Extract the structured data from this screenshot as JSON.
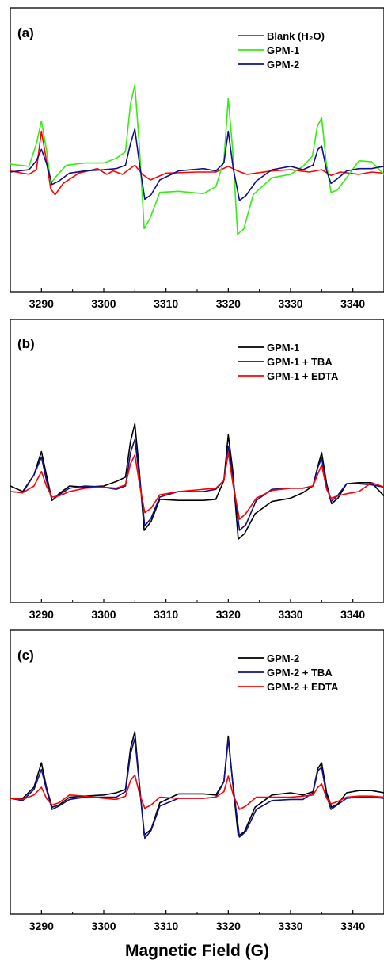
{
  "xlabel": "Magnetic Field (G)",
  "chart_data": [
    {
      "type": "line",
      "panel_label": "(a)",
      "xlim": [
        3285,
        3345
      ],
      "x_ticks": [
        3290,
        3300,
        3310,
        3320,
        3330,
        3340
      ],
      "tick_labels": [
        "3290",
        "3300",
        "3310",
        "3320",
        "3330",
        "3340"
      ],
      "legend_placement": "top-right",
      "series": [
        {
          "name": "Blank (H₂O)",
          "color": "#ff0000",
          "x": [
            3285,
            3288,
            3289.2,
            3290,
            3290.8,
            3291.5,
            3292.2,
            3293.5,
            3296,
            3299,
            3300.5,
            3301.5,
            3303,
            3305,
            3306.2,
            3307.5,
            3310,
            3315,
            3318,
            3320,
            3321.5,
            3323,
            3327,
            3330,
            3333,
            3335,
            3336.5,
            3338,
            3341,
            3343,
            3345
          ],
          "y": [
            0.1,
            -0.2,
            0.2,
            3.6,
            1.0,
            -1.5,
            -2.0,
            -1.0,
            -0.1,
            0.3,
            -0.2,
            0.1,
            -0.2,
            0.6,
            -0.2,
            -0.7,
            -0.1,
            0.0,
            0.0,
            0.5,
            0.1,
            -0.2,
            0.1,
            0.2,
            0.0,
            0.2,
            -0.3,
            0.0,
            -0.2,
            0.0,
            -0.1
          ]
        },
        {
          "name": "GPM-1",
          "color": "#33ee11",
          "x": [
            3285,
            3288,
            3289.2,
            3290,
            3290.8,
            3291.5,
            3292.5,
            3294,
            3297,
            3300,
            3302,
            3303.5,
            3304.3,
            3305,
            3305.7,
            3306.5,
            3307.5,
            3309,
            3312,
            3316,
            3318,
            3319.3,
            3320,
            3320.7,
            3321.5,
            3322.5,
            3324,
            3327,
            3330,
            3332,
            3333.5,
            3334.3,
            3335,
            3335.7,
            3336.5,
            3337.5,
            3339,
            3341,
            3343,
            3345
          ],
          "y": [
            0.7,
            0.5,
            2.5,
            4.5,
            2.0,
            -1.0,
            -0.3,
            0.6,
            0.8,
            0.8,
            1.2,
            1.8,
            6.0,
            7.7,
            2.5,
            -5.0,
            -4.0,
            -1.8,
            -1.7,
            -1.9,
            -1.3,
            1.0,
            6.5,
            2.0,
            -5.5,
            -5.0,
            -2.0,
            -0.5,
            -0.2,
            0.5,
            1.4,
            4.0,
            4.8,
            1.0,
            -1.8,
            -1.6,
            -0.5,
            1.0,
            0.9,
            -0.2
          ]
        },
        {
          "name": "GPM-2",
          "color": "#10108a",
          "x": [
            3285,
            3288,
            3289.2,
            3290,
            3290.8,
            3291.7,
            3292.8,
            3294.5,
            3297,
            3300,
            3302,
            3303.5,
            3304.3,
            3305,
            3305.8,
            3306.6,
            3307.6,
            3309,
            3312,
            3316,
            3318,
            3319.3,
            3320,
            3320.8,
            3321.8,
            3322.8,
            3324.5,
            3327,
            3330,
            3332,
            3333.6,
            3334.4,
            3335,
            3335.8,
            3336.5,
            3337.5,
            3339,
            3341,
            3343,
            3345
          ],
          "y": [
            0.0,
            0.2,
            1.0,
            2.0,
            0.8,
            -1.1,
            -0.8,
            -0.1,
            0.1,
            0.2,
            0.3,
            0.6,
            2.5,
            3.8,
            0.5,
            -2.4,
            -2.0,
            -0.7,
            0.1,
            0.3,
            0.1,
            0.8,
            3.6,
            0.3,
            -2.5,
            -2.1,
            -0.8,
            0.2,
            0.5,
            0.2,
            0.6,
            2.0,
            2.3,
            0.1,
            -1.0,
            -0.6,
            0.1,
            0.3,
            0.3,
            0.5
          ]
        }
      ]
    },
    {
      "type": "line",
      "panel_label": "(b)",
      "xlim": [
        3285,
        3345
      ],
      "x_ticks": [
        3290,
        3300,
        3310,
        3320,
        3330,
        3340
      ],
      "tick_labels": [
        "3290",
        "3300",
        "3310",
        "3320",
        "3330",
        "3340"
      ],
      "legend_placement": "top-right",
      "series": [
        {
          "name": "GPM-1",
          "color": "#000000",
          "x": [
            3285,
            3287,
            3288.8,
            3290,
            3290.8,
            3291.7,
            3292.8,
            3294.5,
            3297,
            3300,
            3302,
            3303.5,
            3304.3,
            3305,
            3305.7,
            3306.5,
            3307.6,
            3309,
            3312,
            3316,
            3318,
            3319.3,
            3320,
            3320.7,
            3321.6,
            3322.6,
            3324.3,
            3327,
            3330,
            3332,
            3333.6,
            3334.4,
            3335,
            3335.8,
            3336.6,
            3337.6,
            3339,
            3341,
            3343,
            3345
          ],
          "y": [
            0.5,
            0.0,
            1.5,
            3.6,
            1.5,
            -0.8,
            -0.2,
            0.5,
            0.4,
            0.5,
            0.9,
            1.3,
            4.5,
            6.1,
            2.0,
            -3.5,
            -2.7,
            -0.7,
            -0.8,
            -0.8,
            -0.7,
            1.0,
            5.1,
            2.0,
            -4.3,
            -3.8,
            -2.0,
            -0.9,
            -0.6,
            -0.1,
            0.5,
            2.3,
            3.5,
            0.7,
            -1.1,
            -0.6,
            0.7,
            0.8,
            0.8,
            -0.4
          ]
        },
        {
          "name": "GPM-1 + TBA",
          "color": "#10108a",
          "x": [
            3285,
            3287,
            3288.8,
            3290,
            3290.8,
            3291.7,
            3292.8,
            3294.5,
            3297,
            3300,
            3302,
            3303.5,
            3304.3,
            3305,
            3305.8,
            3306.6,
            3307.6,
            3309,
            3312,
            3316,
            3318,
            3319.3,
            3320,
            3320.8,
            3321.8,
            3322.8,
            3324.5,
            3327,
            3330,
            3332,
            3333.6,
            3334.4,
            3335,
            3335.8,
            3336.5,
            3337.5,
            3339,
            3341,
            3343,
            3345
          ],
          "y": [
            0.0,
            -0.1,
            1.5,
            3.1,
            1.0,
            -0.8,
            -0.3,
            0.3,
            0.5,
            0.4,
            0.2,
            0.5,
            3.5,
            4.7,
            1.0,
            -3.1,
            -2.4,
            -0.5,
            0.0,
            0.0,
            0.2,
            1.0,
            4.1,
            1.0,
            -3.5,
            -3.0,
            -0.8,
            0.2,
            0.3,
            0.3,
            0.5,
            2.2,
            3.0,
            0.5,
            -0.9,
            -0.4,
            0.7,
            0.7,
            0.6,
            0.4
          ]
        },
        {
          "name": "GPM-1 + EDTA",
          "color": "#ff0000",
          "x": [
            3285,
            3287,
            3288.8,
            3290,
            3290.8,
            3291.7,
            3292.8,
            3294.5,
            3297,
            3300,
            3302,
            3303.5,
            3304.3,
            3305,
            3305.8,
            3306.6,
            3307.6,
            3309,
            3312,
            3316,
            3318,
            3319.3,
            3320,
            3320.8,
            3321.8,
            3322.8,
            3324.5,
            3327,
            3330,
            3332,
            3333.6,
            3334.4,
            3335,
            3335.8,
            3336.5,
            3337.5,
            3339,
            3341,
            3343,
            3345
          ],
          "y": [
            0.0,
            -0.1,
            0.5,
            1.8,
            0.5,
            -0.5,
            -0.4,
            0.0,
            0.3,
            0.4,
            0.3,
            0.6,
            2.5,
            3.3,
            0.5,
            -1.9,
            -1.5,
            -0.3,
            0.0,
            0.2,
            0.3,
            1.0,
            3.5,
            0.5,
            -2.5,
            -2.0,
            -0.6,
            0.1,
            0.3,
            0.3,
            0.5,
            1.6,
            2.4,
            0.2,
            -0.6,
            -0.4,
            -0.2,
            0.0,
            0.8,
            0.4
          ]
        }
      ]
    },
    {
      "type": "line",
      "panel_label": "(c)",
      "xlim": [
        3285,
        3345
      ],
      "x_ticks": [
        3290,
        3300,
        3310,
        3320,
        3330,
        3340
      ],
      "tick_labels": [
        "3290",
        "3300",
        "3310",
        "3320",
        "3330",
        "3340"
      ],
      "legend_placement": "top-right",
      "series": [
        {
          "name": "GPM-2",
          "color": "#000000",
          "x": [
            3285,
            3287,
            3288.8,
            3290,
            3290.8,
            3291.7,
            3292.8,
            3294.5,
            3297,
            3300,
            3302,
            3303.5,
            3304.3,
            3305,
            3305.7,
            3306.5,
            3307.6,
            3309,
            3312,
            3316,
            3318,
            3319.3,
            3320,
            3320.7,
            3321.6,
            3322.6,
            3324.3,
            3327,
            3330,
            3332,
            3333.6,
            3334.4,
            3335,
            3335.8,
            3336.6,
            3337.6,
            3339,
            3341,
            3343,
            3345
          ],
          "y": [
            0.0,
            0.0,
            1.0,
            3.2,
            1.0,
            -0.8,
            -0.6,
            0.1,
            0.2,
            0.3,
            0.5,
            0.8,
            4.5,
            6.0,
            1.5,
            -3.3,
            -2.8,
            -0.4,
            0.4,
            0.4,
            0.3,
            1.5,
            5.6,
            1.5,
            -3.4,
            -3.0,
            -0.8,
            0.3,
            0.5,
            0.3,
            0.6,
            2.7,
            3.2,
            0.5,
            -0.8,
            -0.5,
            0.5,
            0.7,
            0.7,
            0.5
          ]
        },
        {
          "name": "GPM-2 + TBA",
          "color": "#10108a",
          "x": [
            3285,
            3287,
            3288.8,
            3290,
            3290.8,
            3291.7,
            3292.8,
            3294.5,
            3297,
            3300,
            3302,
            3303.5,
            3304.3,
            3305,
            3305.8,
            3306.6,
            3307.6,
            3309,
            3312,
            3316,
            3318,
            3319.3,
            3320,
            3320.8,
            3321.8,
            3322.8,
            3324.5,
            3327,
            3330,
            3332,
            3333.6,
            3334.4,
            3335,
            3335.8,
            3336.5,
            3337.5,
            3339,
            3341,
            3343,
            3345
          ],
          "y": [
            0.0,
            -0.2,
            0.8,
            2.6,
            0.8,
            -1.0,
            -0.7,
            -0.1,
            0.1,
            0.1,
            0.1,
            0.6,
            4.0,
            5.4,
            0.8,
            -3.6,
            -2.9,
            -0.7,
            0.0,
            0.0,
            0.1,
            1.5,
            5.3,
            1.0,
            -3.5,
            -3.0,
            -1.0,
            -0.2,
            -0.1,
            -0.1,
            0.5,
            2.5,
            2.8,
            0.2,
            -1.0,
            -0.6,
            0.0,
            0.1,
            0.1,
            0.0
          ]
        },
        {
          "name": "GPM-2 + EDTA",
          "color": "#ff0000",
          "x": [
            3285,
            3287,
            3288.8,
            3290,
            3290.8,
            3291.7,
            3292.8,
            3294.5,
            3297,
            3300,
            3302,
            3303.5,
            3304.3,
            3305,
            3305.8,
            3306.6,
            3307.6,
            3309,
            3312,
            3316,
            3318,
            3319.3,
            3320,
            3320.8,
            3321.8,
            3322.8,
            3324.5,
            3327,
            3330,
            3332,
            3333.6,
            3334.4,
            3335,
            3335.8,
            3336.5,
            3337.5,
            3339,
            3341,
            3343,
            3345
          ],
          "y": [
            0.0,
            -0.1,
            0.3,
            1.0,
            0.0,
            -0.6,
            -0.4,
            0.3,
            0.2,
            0.0,
            -0.1,
            0.2,
            1.6,
            2.1,
            0.3,
            -0.9,
            -0.6,
            0.1,
            0.0,
            0.0,
            0.1,
            0.6,
            2.0,
            0.3,
            -1.0,
            -0.7,
            0.1,
            0.1,
            0.1,
            0.2,
            0.3,
            1.0,
            1.3,
            0.0,
            -0.5,
            -0.3,
            0.1,
            0.2,
            0.2,
            0.1
          ]
        }
      ]
    }
  ]
}
